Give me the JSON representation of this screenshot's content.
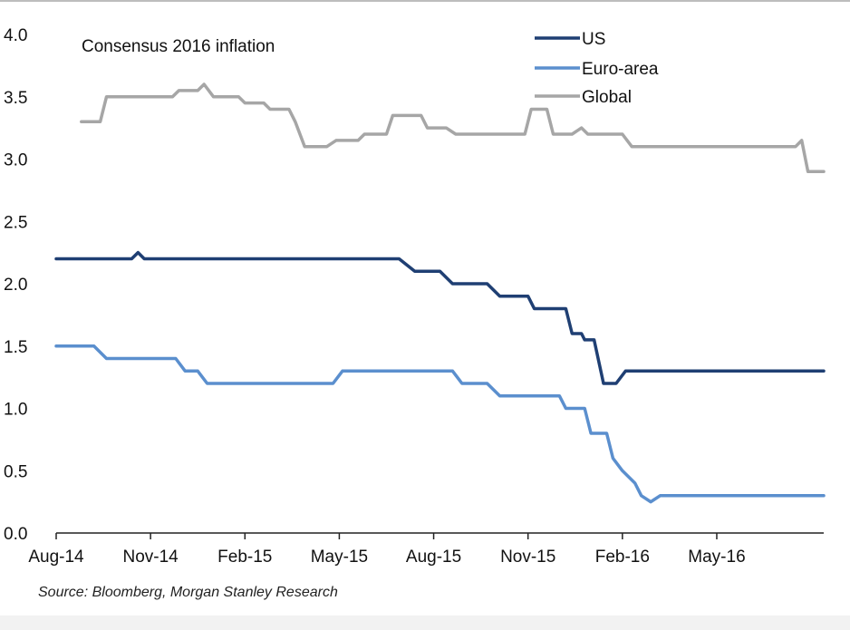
{
  "chart_data": {
    "type": "line",
    "title": "Consensus 2016 inflation",
    "source": "Source: Bloomberg,  Morgan Stanley Research",
    "xlabel": "",
    "ylabel": "",
    "ylim": [
      0,
      4
    ],
    "xlim": [
      0,
      24.4
    ],
    "x_ticks": [
      {
        "label": "Aug-14",
        "x": 0
      },
      {
        "label": "Nov-14",
        "x": 3
      },
      {
        "label": "Feb-15",
        "x": 6
      },
      {
        "label": "May-15",
        "x": 9
      },
      {
        "label": "Aug-15",
        "x": 12
      },
      {
        "label": "Nov-15",
        "x": 15
      },
      {
        "label": "Feb-16",
        "x": 18
      },
      {
        "label": "May-16",
        "x": 21
      }
    ],
    "y_ticks": [
      "0.0",
      "0.5",
      "1.0",
      "1.5",
      "2.0",
      "2.5",
      "3.0",
      "3.5",
      "4.0"
    ],
    "legend_position": "top-right",
    "series": [
      {
        "name": "US",
        "color": "#1f3f73",
        "points": [
          [
            0,
            2.2
          ],
          [
            2.4,
            2.2
          ],
          [
            2.6,
            2.25
          ],
          [
            2.8,
            2.2
          ],
          [
            10.9,
            2.2
          ],
          [
            11.4,
            2.1
          ],
          [
            12.2,
            2.1
          ],
          [
            12.6,
            2.0
          ],
          [
            13.7,
            2.0
          ],
          [
            14.1,
            1.9
          ],
          [
            15.0,
            1.9
          ],
          [
            15.2,
            1.8
          ],
          [
            16.2,
            1.8
          ],
          [
            16.4,
            1.6
          ],
          [
            16.7,
            1.6
          ],
          [
            16.8,
            1.55
          ],
          [
            17.1,
            1.55
          ],
          [
            17.4,
            1.2
          ],
          [
            17.8,
            1.2
          ],
          [
            18.1,
            1.3
          ],
          [
            24.4,
            1.3
          ]
        ]
      },
      {
        "name": "Euro-area",
        "color": "#5b8fce",
        "points": [
          [
            0,
            1.5
          ],
          [
            1.2,
            1.5
          ],
          [
            1.6,
            1.4
          ],
          [
            3.8,
            1.4
          ],
          [
            4.1,
            1.3
          ],
          [
            4.5,
            1.3
          ],
          [
            4.8,
            1.2
          ],
          [
            8.8,
            1.2
          ],
          [
            9.1,
            1.3
          ],
          [
            12.6,
            1.3
          ],
          [
            12.9,
            1.2
          ],
          [
            13.7,
            1.2
          ],
          [
            14.1,
            1.1
          ],
          [
            16.0,
            1.1
          ],
          [
            16.2,
            1.0
          ],
          [
            16.8,
            1.0
          ],
          [
            17.0,
            0.8
          ],
          [
            17.5,
            0.8
          ],
          [
            17.7,
            0.6
          ],
          [
            18.0,
            0.5
          ],
          [
            18.4,
            0.4
          ],
          [
            18.6,
            0.3
          ],
          [
            18.9,
            0.25
          ],
          [
            19.2,
            0.3
          ],
          [
            24.4,
            0.3
          ]
        ]
      },
      {
        "name": "Global",
        "color": "#a6a6a6",
        "points": [
          [
            0.8,
            3.3
          ],
          [
            1.4,
            3.3
          ],
          [
            1.6,
            3.5
          ],
          [
            3.7,
            3.5
          ],
          [
            3.9,
            3.55
          ],
          [
            4.5,
            3.55
          ],
          [
            4.7,
            3.6
          ],
          [
            5.0,
            3.5
          ],
          [
            5.8,
            3.5
          ],
          [
            6.0,
            3.45
          ],
          [
            6.6,
            3.45
          ],
          [
            6.8,
            3.4
          ],
          [
            7.4,
            3.4
          ],
          [
            7.6,
            3.3
          ],
          [
            7.9,
            3.1
          ],
          [
            8.6,
            3.1
          ],
          [
            8.9,
            3.15
          ],
          [
            9.6,
            3.15
          ],
          [
            9.8,
            3.2
          ],
          [
            10.5,
            3.2
          ],
          [
            10.7,
            3.35
          ],
          [
            11.6,
            3.35
          ],
          [
            11.8,
            3.25
          ],
          [
            12.4,
            3.25
          ],
          [
            12.7,
            3.2
          ],
          [
            14.9,
            3.2
          ],
          [
            15.1,
            3.4
          ],
          [
            15.6,
            3.4
          ],
          [
            15.8,
            3.2
          ],
          [
            16.4,
            3.2
          ],
          [
            16.7,
            3.25
          ],
          [
            16.9,
            3.2
          ],
          [
            18.0,
            3.2
          ],
          [
            18.3,
            3.1
          ],
          [
            23.5,
            3.1
          ],
          [
            23.7,
            3.15
          ],
          [
            23.9,
            2.9
          ],
          [
            24.4,
            2.9
          ]
        ]
      }
    ]
  }
}
